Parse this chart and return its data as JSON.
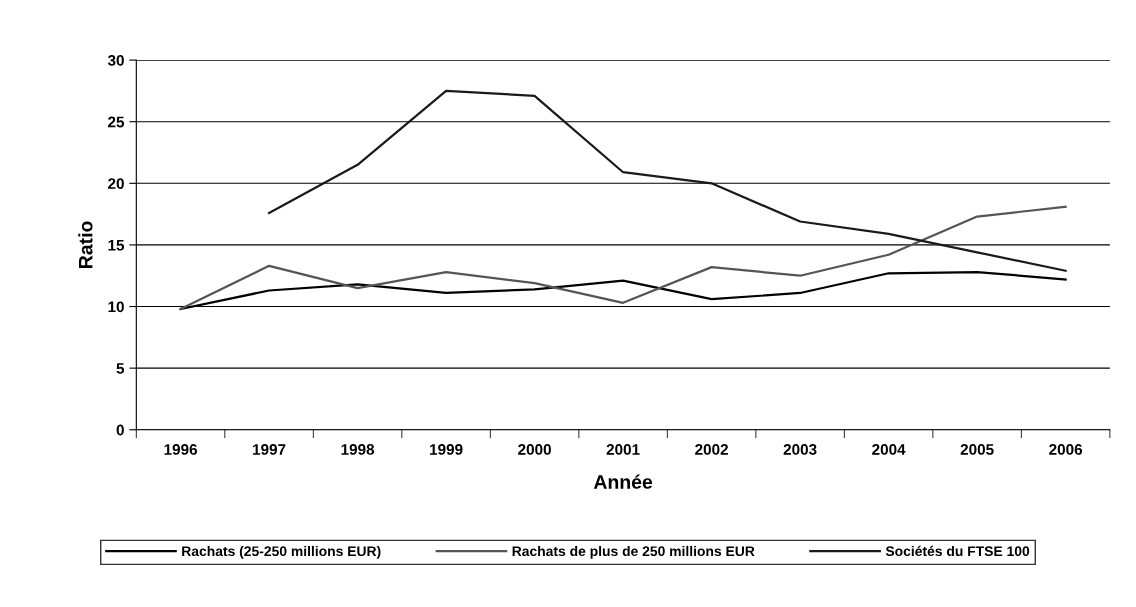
{
  "chart_data": {
    "type": "line",
    "xlabel": "Année",
    "ylabel": "Ratio",
    "categories": [
      "1996",
      "1997",
      "1998",
      "1999",
      "2000",
      "2001",
      "2002",
      "2003",
      "2004",
      "2005",
      "2006"
    ],
    "series": [
      {
        "name": "Rachats (25-250 millions EUR)",
        "color": "#000000",
        "values": [
          9.8,
          11.3,
          11.8,
          11.1,
          11.4,
          12.1,
          10.6,
          11.1,
          12.7,
          12.8,
          12.2
        ]
      },
      {
        "name": "Rachats de plus de 250 millions EUR",
        "color": "#555555",
        "values": [
          9.8,
          13.3,
          11.5,
          12.8,
          11.9,
          10.3,
          13.2,
          12.5,
          14.2,
          17.3,
          18.1
        ]
      },
      {
        "name": "Sociétés du FTSE 100",
        "color": "#1a1a1a",
        "values": [
          null,
          17.6,
          21.5,
          27.5,
          27.1,
          20.9,
          20.0,
          16.9,
          15.9,
          14.4,
          12.9
        ]
      }
    ],
    "ylim": [
      0,
      30
    ],
    "yticks": [
      0,
      5,
      10,
      15,
      20,
      25,
      30
    ],
    "grid": "y",
    "legend": "bottom",
    "marker": "none",
    "line_style": "solid"
  }
}
